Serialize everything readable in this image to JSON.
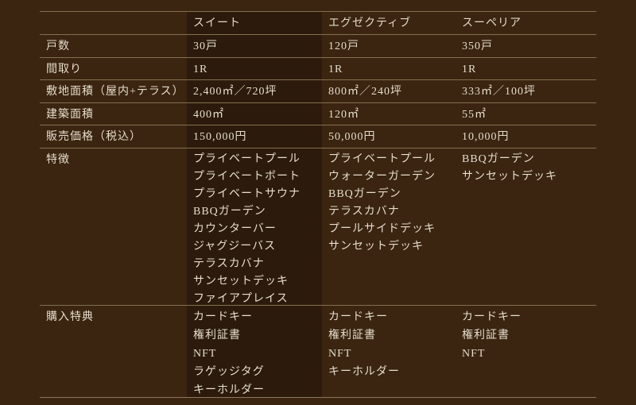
{
  "page": {
    "background_color": "#3b2511",
    "line_color": "#82704f",
    "text_color": "#eadfcb",
    "highlight_column": "スイート"
  },
  "table": {
    "plans": [
      "スイート",
      "エグゼクティブ",
      "スーペリア"
    ],
    "rows": [
      {
        "label": "戸数",
        "values": [
          "30戸",
          "120戸",
          "350戸"
        ]
      },
      {
        "label": "間取り",
        "values": [
          "1R",
          "1R",
          "1R"
        ]
      },
      {
        "label": "敷地面積（屋内+テラス）",
        "values": [
          "2,400㎡／720坪",
          "800㎡／240坪",
          "333㎡／100坪"
        ]
      },
      {
        "label": "建築面積",
        "values": [
          "400㎡",
          "120㎡",
          "55㎡"
        ]
      },
      {
        "label": "販売価格（税込）",
        "values": [
          "150,000円",
          "50,000円",
          "10,000円"
        ]
      },
      {
        "label": "特徴",
        "values": [
          [
            "プライベートプール",
            "プライベートボート",
            "プライベートサウナ",
            "BBQガーデン",
            "カウンターバー",
            "ジャグジーバス",
            "テラスカバナ",
            "サンセットデッキ",
            "ファイアプレイス"
          ],
          [
            "プライベートプール",
            "ウォーターガーデン",
            "BBQガーデン",
            "テラスカバナ",
            "プールサイドデッキ",
            "サンセットデッキ"
          ],
          [
            "BBQガーデン",
            "サンセットデッキ"
          ]
        ]
      },
      {
        "label": "購入特典",
        "values": [
          [
            "カードキー",
            "権利証書",
            "NFT",
            "ラゲッジタグ",
            "キーホルダー"
          ],
          [
            "カードキー",
            "権利証書",
            "NFT",
            "キーホルダー"
          ],
          [
            "カードキー",
            "権利証書",
            "NFT"
          ]
        ]
      }
    ]
  }
}
